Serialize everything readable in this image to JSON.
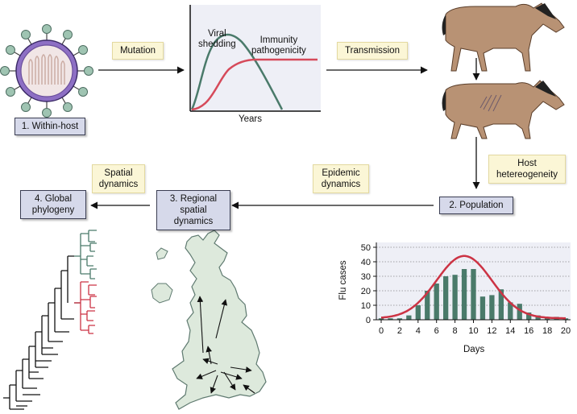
{
  "stages": {
    "within_host": "1. Within-host",
    "population": "2. Population",
    "regional": [
      "3. Regional spatial",
      "dynamics"
    ],
    "global": [
      "4. Global",
      "phylogeny"
    ]
  },
  "processes": {
    "mutation": "Mutation",
    "transmission": "Transmission",
    "host_heterogeneity": [
      "Host",
      "hetereogeneity"
    ],
    "epidemic_dynamics": [
      "Epidemic",
      "dynamics"
    ],
    "spatial_dynamics": [
      "Spatial",
      "dynamics"
    ]
  },
  "curve_panel": {
    "viral_label": [
      "Viral",
      "shedding"
    ],
    "immunity_label": [
      "Immunity",
      "pathogenicity"
    ],
    "xlabel": "Years",
    "colors": {
      "viral": "#4a7a6a",
      "immunity": "#d64a5a"
    }
  },
  "chart_data": {
    "type": "bar",
    "xlabel": "Days",
    "ylabel": "Flu cases",
    "x": [
      0,
      1,
      2,
      3,
      4,
      5,
      6,
      7,
      8,
      9,
      10,
      11,
      12,
      13,
      14,
      15,
      16,
      17,
      18,
      19,
      20
    ],
    "values": [
      1,
      1,
      1,
      3,
      10,
      20,
      25,
      30,
      31,
      35,
      35,
      16,
      17,
      21,
      12,
      11,
      5,
      3,
      2,
      2,
      1
    ],
    "xticks": [
      0,
      2,
      4,
      6,
      8,
      10,
      12,
      14,
      16,
      18,
      20
    ],
    "yticks": [
      0,
      10,
      20,
      30,
      40,
      50
    ],
    "xlim": [
      0,
      20
    ],
    "ylim": [
      0,
      50
    ],
    "grid": true,
    "bar_color": "#4a7a6a",
    "fit_color": "#cc3344",
    "fit": {
      "peak_x": 9,
      "peak_y": 44,
      "sigma": 3.0
    }
  }
}
